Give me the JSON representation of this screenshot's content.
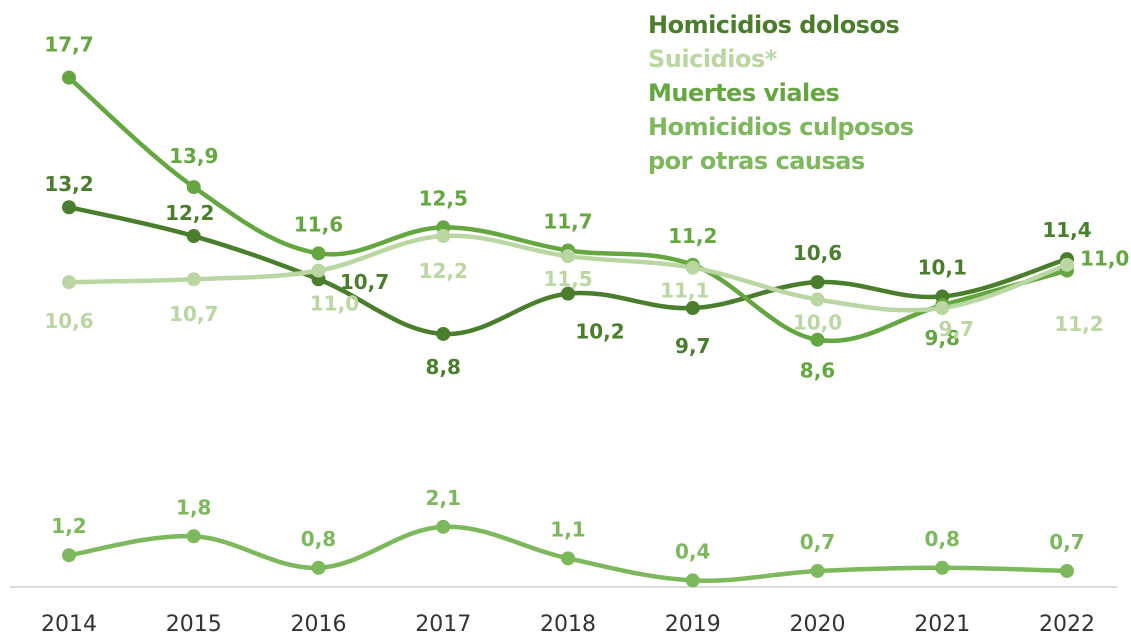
{
  "chart_data": {
    "type": "line",
    "categories": [
      "2014",
      "2015",
      "2016",
      "2017",
      "2018",
      "2019",
      "2020",
      "2021",
      "2022"
    ],
    "series": [
      {
        "name": "Homicidios dolosos",
        "color": "#4a7d2c",
        "values": [
          13.2,
          12.2,
          10.7,
          8.8,
          10.2,
          9.7,
          10.6,
          10.1,
          11.4
        ],
        "labels": [
          "13,2",
          "12,2",
          "10,7",
          "8,8",
          "10,2",
          "9,7",
          "10,6",
          "10,1",
          "11,4"
        ]
      },
      {
        "name": "Suicidios*",
        "color": "#b9d6a3",
        "values": [
          10.6,
          10.7,
          11.0,
          12.2,
          11.5,
          11.1,
          10.0,
          9.7,
          11.2
        ],
        "labels": [
          "10,6",
          "10,7",
          "11,0",
          "12,2",
          "11,5",
          "11,1",
          "10,0",
          "9,7",
          "11,2"
        ]
      },
      {
        "name": "Muertes viales",
        "color": "#64a640",
        "values": [
          17.7,
          13.9,
          11.6,
          12.5,
          11.7,
          11.2,
          8.6,
          9.8,
          11.0
        ],
        "labels": [
          "17,7",
          "13,9",
          "11,6",
          "12,5",
          "11,7",
          "11,2",
          "8,6",
          "9,8",
          "11,0"
        ]
      },
      {
        "name": "Homicidios culposos\npor otras causas",
        "color": "#7db85c",
        "values": [
          1.2,
          1.8,
          0.8,
          2.1,
          1.1,
          0.4,
          0.7,
          0.8,
          0.7
        ],
        "labels": [
          "1,2",
          "1,8",
          "0,8",
          "2,1",
          "1,1",
          "0,4",
          "0,7",
          "0,8",
          "0,7"
        ]
      }
    ],
    "legend_placement": "top-right",
    "grid": false
  }
}
